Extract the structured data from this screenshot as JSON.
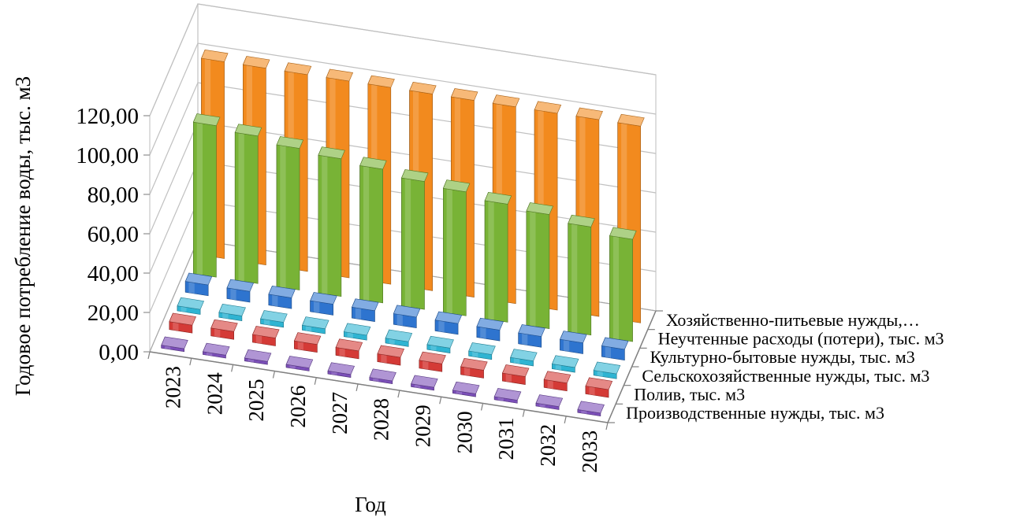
{
  "chart_data": {
    "type": "bar",
    "subtype": "3d-column",
    "title": "",
    "xlabel": "Год",
    "ylabel": "Годовое потребление воды, тыс. м3",
    "ylim": [
      0,
      120
    ],
    "ytick_labels": [
      "0,00",
      "20,00",
      "40,00",
      "60,00",
      "80,00",
      "100,00",
      "120,00"
    ],
    "grid": true,
    "categories": [
      "2023",
      "2024",
      "2025",
      "2026",
      "2027",
      "2028",
      "2029",
      "2030",
      "2031",
      "2032",
      "2033"
    ],
    "series_axis_labels": [
      "Производственные нужды, тыс. м3",
      "Полив, тыс. м3",
      "Сельскохозяйственные нужды, тыс. м3",
      "Культурно-бытовые нужды, тыс. м3",
      "Неучтенные расходы (потери), тыс. м3",
      "Хозяйственно-питьевые нужды,…"
    ],
    "series": [
      {
        "name": "Производственные нужды, тыс. м3",
        "color": "#7B4FB8",
        "values": [
          1.5,
          1.5,
          1.5,
          1.5,
          1.5,
          1.5,
          1.5,
          1.5,
          1.5,
          1.5,
          1.5
        ]
      },
      {
        "name": "Полив, тыс. м3",
        "color": "#D43A36",
        "values": [
          4,
          4,
          4,
          4,
          4,
          4,
          4,
          4,
          4,
          4,
          4
        ]
      },
      {
        "name": "Сельскохозяйственные нужды, тыс. м3",
        "color": "#2FB4D2",
        "values": [
          2.5,
          2.5,
          2.5,
          2.5,
          2.5,
          2.5,
          2.5,
          2.5,
          2.5,
          2.5,
          2.5
        ]
      },
      {
        "name": "Культурно-бытовые нужды, тыс. м3",
        "color": "#2E74CF",
        "values": [
          5.5,
          5.5,
          5.5,
          5.5,
          5.5,
          5.5,
          5.5,
          5.5,
          5.5,
          5.5,
          5.5
        ]
      },
      {
        "name": "Неучтенные расходы (потери), тыс. м3",
        "color": "#78B336",
        "values": [
          77,
          75,
          72,
          70,
          68,
          65,
          63,
          60,
          58,
          55,
          52
        ]
      },
      {
        "name": "Хозяйственно-питьевые нужды,…",
        "color": "#F28A1E",
        "values": [
          100,
          100,
          100,
          100,
          100,
          100,
          100,
          100,
          100,
          100,
          100
        ]
      }
    ]
  }
}
